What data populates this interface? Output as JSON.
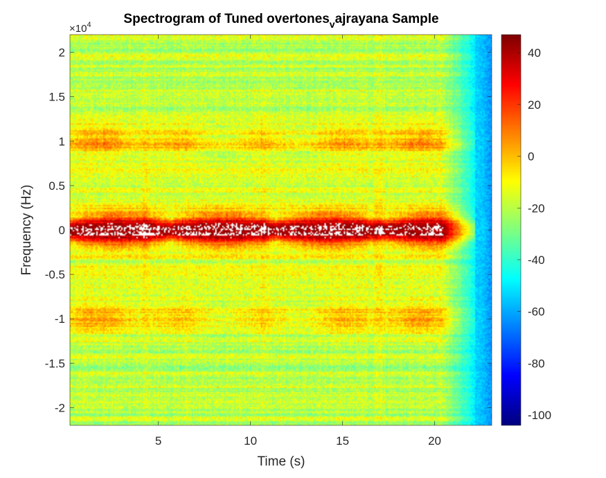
{
  "chart_data": {
    "type": "heatmap",
    "title_main": "Spectrogram of Tuned overtones",
    "title_subscript": "v",
    "title_rest": "ajrayana Sample",
    "xlabel": "Time (s)",
    "ylabel": "Frequency (Hz)",
    "y_exponent_base": "×10",
    "y_exponent_power": "4",
    "xlim": [
      0.2,
      23.1
    ],
    "ylim": [
      -2.2,
      2.2
    ],
    "clim": [
      -104,
      47
    ],
    "colormap": "jet",
    "xticks": [
      5,
      10,
      15,
      20
    ],
    "xtick_labels": [
      "5",
      "10",
      "15",
      "20"
    ],
    "yticks": [
      -2,
      -1.5,
      -1,
      -0.5,
      0,
      0.5,
      1,
      1.5,
      2
    ],
    "ytick_labels": [
      "-2",
      "-1.5",
      "-1",
      "-0.5",
      "0",
      "0.5",
      "1",
      "1.5",
      "2"
    ],
    "cticks": [
      -100,
      -80,
      -60,
      -40,
      -20,
      0,
      20,
      40
    ],
    "ctick_labels": [
      "-100",
      "-80",
      "-60",
      "-40",
      "-20",
      "0",
      "20",
      "40"
    ],
    "features": {
      "center_band_freq": 0,
      "center_band_level": 42,
      "overtone_bands_freq": [
        1,
        -1
      ],
      "overtone_band_level": 3,
      "background_level": -20,
      "signal_end_time": 22.2,
      "after_end_level": -62,
      "onset_times": [
        4.3,
        10.7,
        17
      ]
    }
  }
}
